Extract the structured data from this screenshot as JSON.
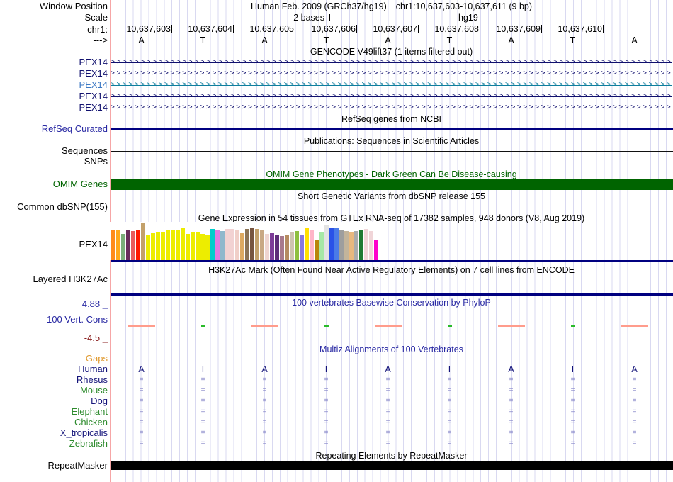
{
  "browser": {
    "window_position_label": "Window Position",
    "assembly_text": "Human Feb. 2009 (GRCh37/hg19)",
    "position_text": "chr1:10,637,603-10,637,611 (9 bp)",
    "scale_label": "Scale",
    "scale_text": "2 bases",
    "assembly_short": "hg19",
    "chrom_label": "chr1:",
    "strand_label": "--->",
    "ruler_numbers": [
      "10,637,603",
      "10,637,604",
      "10,637,605",
      "10,637,606",
      "10,637,607",
      "10,637,608",
      "10,637,609",
      "10,637,610"
    ],
    "bases": [
      "A",
      "T",
      "A",
      "T",
      "A",
      "T",
      "A",
      "T",
      "A"
    ]
  },
  "tracks": {
    "gencode": {
      "title": "GENCODE V49lift37 (1 items filtered out)",
      "genes": [
        {
          "name": "PEX14",
          "label_color": "#10106E",
          "arrow_color": "#10106E"
        },
        {
          "name": "PEX14",
          "label_color": "#10106E",
          "arrow_color": "#10106E"
        },
        {
          "name": "PEX14",
          "label_color": "#3D79C4",
          "arrow_color": "#0F7E9E"
        },
        {
          "name": "PEX14",
          "label_color": "#10106E",
          "arrow_color": "#10106E"
        },
        {
          "name": "PEX14",
          "label_color": "#10106E",
          "arrow_color": "#10106E"
        }
      ]
    },
    "refseq": {
      "title": "RefSeq genes from NCBI",
      "label": "RefSeq Curated",
      "line_color": "#000080"
    },
    "publications": {
      "title": "Publications: Sequences in Scientific Articles",
      "label": "Sequences",
      "line_color": "#111111"
    },
    "snps": {
      "label": "SNPs"
    },
    "omim": {
      "title": "OMIM Gene Phenotypes - Dark Green Can Be Disease-causing",
      "label": "OMIM Genes",
      "bar_color": "#006400"
    },
    "dbsnp": {
      "title": "Short Genetic Variants from dbSNP release 155",
      "label": "Common dbSNP(155)"
    },
    "gtex": {
      "title": "Gene Expression in 54 tissues from GTEx RNA-seq of 17382 samples, 948 donors (V8, Aug 2019)",
      "label": "PEX14",
      "baseline_color": "#000080"
    },
    "h3k27ac": {
      "title": "H3K27Ac Mark (Often Found Near Active Regulatory Elements) on 7 cell lines from ENCODE",
      "label": "Layered H3K27Ac",
      "line_color": "#000080"
    },
    "conservation": {
      "title": "100 vertebrates Basewise Conservation by PhyloP",
      "label": "100 Vert. Cons",
      "max_label": "4.88 _",
      "min_label": "-4.5 _",
      "marks": [
        "salmon",
        "green",
        "salmon",
        "green",
        "salmon",
        "green",
        "salmon",
        "green",
        "salmon"
      ],
      "mark_colors": {
        "salmon": "#FF9C8C",
        "green": "#2ABB2A"
      }
    },
    "multiz": {
      "title": "Multiz Alignments of 100 Vertebrates",
      "gaps": {
        "label": "Gaps",
        "color": "#E09A30"
      },
      "human": {
        "label": "Human",
        "color": "#14147A"
      },
      "match_glyph": "=",
      "match_color": "#8787C9",
      "species": [
        {
          "name": "Rhesus",
          "color": "#14147A"
        },
        {
          "name": "Mouse",
          "color": "#2E8B2E"
        },
        {
          "name": "Dog",
          "color": "#14147A"
        },
        {
          "name": "Elephant",
          "color": "#2E8B2E"
        },
        {
          "name": "Chicken",
          "color": "#2E8B2E"
        },
        {
          "name": "X_tropicalis",
          "color": "#14147A"
        },
        {
          "name": "Zebrafish",
          "color": "#2E8B2E"
        }
      ]
    },
    "repeatmasker": {
      "title": "Repeating Elements by RepeatMasker",
      "label": "RepeatMasker",
      "bar_color": "#000000"
    }
  },
  "chart_data": {
    "type": "bar",
    "title": "Gene Expression in 54 tissues from GTEx RNA-seq of 17382 samples, 948 donors (V8, Aug 2019)",
    "gene": "PEX14",
    "n_bars": 54,
    "note": "Tissue names are not displayed in the image; colors follow the GTEx tissue palette. Values are bar heights in pixels (no numeric axis shown).",
    "values": [
      43,
      42,
      37,
      43,
      41,
      43,
      52,
      35,
      38,
      39,
      39,
      43,
      43,
      43,
      45,
      37,
      39,
      39,
      37,
      35,
      44,
      42,
      41,
      44,
      44,
      42,
      38,
      44,
      45,
      44,
      42,
      37,
      38,
      36,
      34,
      36,
      39,
      41,
      36,
      45,
      42,
      28,
      40,
      50,
      45,
      45,
      42,
      41,
      39,
      41,
      43,
      44,
      41,
      29
    ],
    "colors": [
      "#FF8C1A",
      "#FFA91A",
      "#7CAE7A",
      "#6B2D5C",
      "#E85C5C",
      "#FF1A00",
      "#C3A16B",
      "#EDED00",
      "#EDED00",
      "#EDED00",
      "#EDED00",
      "#EDED00",
      "#EDED00",
      "#EDED00",
      "#EDED00",
      "#EDED00",
      "#EDED00",
      "#EDED00",
      "#EDED00",
      "#EDED00",
      "#00CCCC",
      "#E07BE0",
      "#8FB8CC",
      "#F2D2D2",
      "#F2D2D2",
      "#F0CFC8",
      "#DDA960",
      "#8B7355",
      "#77553F",
      "#C3A16B",
      "#C9A984",
      "#EFD5D0",
      "#7D3C98",
      "#5E2D79",
      "#A8798C",
      "#B58B60",
      "#CFC3B0",
      "#8FBF3F",
      "#8877DD",
      "#FFE000",
      "#FFB6C8",
      "#B8860B",
      "#A6E8A6",
      "#E3E3E3",
      "#2A52E8",
      "#4A7BE8",
      "#9E9E9E",
      "#C3B49B",
      "#E8B87E",
      "#ABABAB",
      "#1F7A33",
      "#F0D5D8",
      "#F0D5D8",
      "#FF00CC"
    ]
  }
}
